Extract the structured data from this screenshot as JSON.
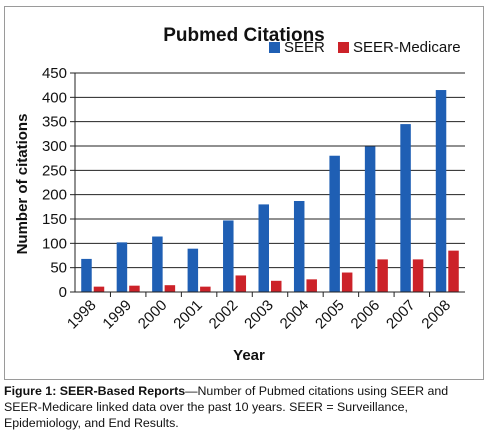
{
  "chart_data": {
    "type": "bar",
    "title": "Pubmed Citations",
    "xlabel": "Year",
    "ylabel": "Number of citations",
    "categories": [
      "1998",
      "1999",
      "2000",
      "2001",
      "2002",
      "2003",
      "2004",
      "2005",
      "2006",
      "2007",
      "2008"
    ],
    "series": [
      {
        "name": "SEER",
        "color": "#1f5fb4",
        "values": [
          68,
          102,
          114,
          89,
          147,
          180,
          187,
          280,
          299,
          345,
          415
        ]
      },
      {
        "name": "SEER-Medicare",
        "color": "#cc2229",
        "values": [
          11,
          13,
          14,
          11,
          34,
          23,
          26,
          40,
          67,
          67,
          85
        ]
      }
    ],
    "ylim": [
      0,
      450
    ],
    "yticks": [
      0,
      50,
      100,
      150,
      200,
      250,
      300,
      350,
      400,
      450
    ],
    "grid": true,
    "legend_position": "top-right"
  },
  "caption": {
    "lead": "Figure 1: SEER-Based Reports",
    "text": "—Number of Pubmed citations using SEER and SEER-Medicare linked data over the past 10 years. SEER = Surveillance, Epidemiology, and End Results."
  }
}
